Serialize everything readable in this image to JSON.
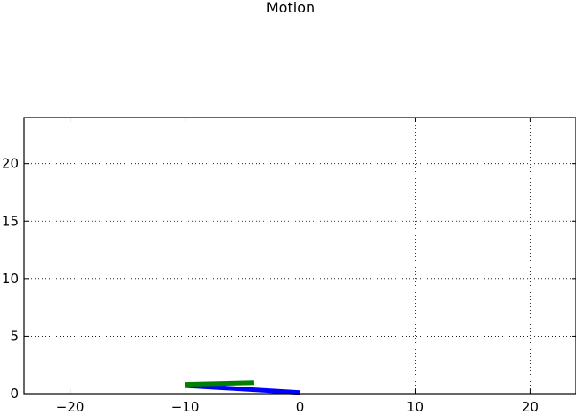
{
  "chart_data": {
    "type": "line",
    "title": "Motion",
    "xlabel": "",
    "ylabel": "",
    "xlim": [
      -24,
      24
    ],
    "ylim": [
      0,
      24
    ],
    "xticks": [
      -20,
      -10,
      0,
      10,
      20
    ],
    "xtick_labels": [
      "−20",
      "−10",
      "0",
      "10",
      "20"
    ],
    "yticks": [
      0,
      5,
      10,
      15,
      20
    ],
    "ytick_labels": [
      "0",
      "5",
      "10",
      "15",
      "20"
    ],
    "grid": true,
    "series": [
      {
        "color": "#0000ff",
        "x": [
          0,
          -10
        ],
        "y": [
          0.1,
          0.7
        ]
      },
      {
        "color": "#008000",
        "x": [
          -10,
          -4
        ],
        "y": [
          0.8,
          0.95
        ]
      }
    ]
  }
}
